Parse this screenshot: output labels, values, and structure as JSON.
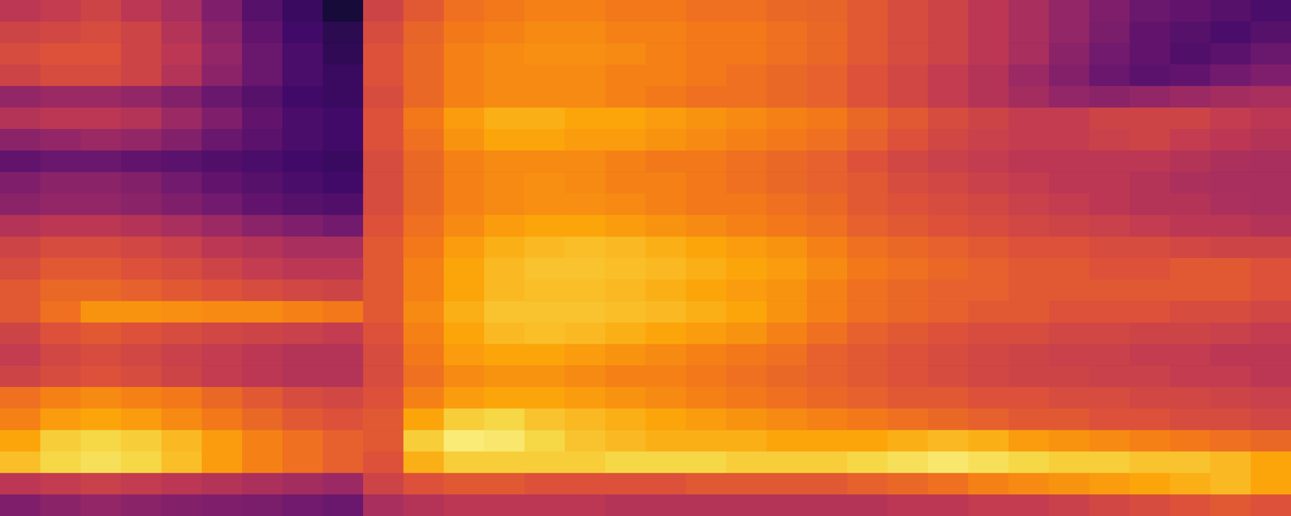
{
  "chart_data": {
    "type": "heatmap",
    "color": "inferno",
    "tick_labels": false,
    "zlim": [
      0,
      100
    ],
    "cells": [
      [
        50,
        52,
        55,
        50,
        45,
        35,
        25,
        18,
        10,
        55,
        62,
        68,
        70,
        72,
        72,
        70,
        70,
        68,
        68,
        66,
        65,
        62,
        58,
        55,
        50,
        45,
        40,
        35,
        30,
        28,
        25,
        22
      ],
      [
        55,
        56,
        58,
        55,
        48,
        38,
        28,
        20,
        15,
        58,
        65,
        70,
        72,
        74,
        74,
        72,
        72,
        70,
        70,
        68,
        66,
        62,
        58,
        55,
        50,
        45,
        40,
        34,
        28,
        25,
        22,
        25
      ],
      [
        58,
        60,
        60,
        55,
        50,
        40,
        30,
        22,
        16,
        60,
        66,
        72,
        74,
        75,
        75,
        74,
        72,
        70,
        70,
        68,
        66,
        62,
        58,
        55,
        50,
        45,
        38,
        32,
        28,
        24,
        26,
        30
      ],
      [
        55,
        58,
        58,
        55,
        48,
        38,
        30,
        22,
        18,
        60,
        66,
        72,
        74,
        74,
        74,
        72,
        72,
        70,
        68,
        66,
        64,
        60,
        56,
        52,
        48,
        42,
        36,
        30,
        26,
        28,
        32,
        35
      ],
      [
        40,
        42,
        42,
        40,
        36,
        30,
        25,
        20,
        18,
        58,
        66,
        72,
        74,
        74,
        74,
        72,
        70,
        68,
        68,
        66,
        64,
        60,
        56,
        52,
        48,
        44,
        40,
        38,
        40,
        42,
        44,
        45
      ],
      [
        48,
        50,
        50,
        48,
        42,
        35,
        28,
        22,
        20,
        60,
        70,
        78,
        82,
        82,
        80,
        80,
        78,
        76,
        74,
        72,
        70,
        66,
        62,
        58,
        55,
        52,
        52,
        55,
        55,
        55,
        52,
        50
      ],
      [
        38,
        40,
        42,
        40,
        36,
        30,
        26,
        22,
        20,
        60,
        68,
        76,
        80,
        80,
        78,
        78,
        76,
        74,
        72,
        70,
        68,
        64,
        60,
        56,
        54,
        52,
        52,
        54,
        55,
        52,
        50,
        48
      ],
      [
        28,
        30,
        30,
        28,
        26,
        24,
        22,
        20,
        18,
        58,
        66,
        72,
        74,
        74,
        74,
        72,
        70,
        70,
        68,
        66,
        64,
        60,
        56,
        54,
        52,
        50,
        50,
        50,
        50,
        48,
        46,
        45
      ],
      [
        35,
        38,
        38,
        36,
        32,
        28,
        25,
        22,
        20,
        58,
        66,
        72,
        74,
        75,
        74,
        72,
        72,
        70,
        68,
        66,
        64,
        62,
        58,
        56,
        54,
        52,
        50,
        50,
        48,
        46,
        45,
        45
      ],
      [
        38,
        40,
        40,
        38,
        35,
        32,
        28,
        25,
        24,
        58,
        66,
        72,
        74,
        75,
        75,
        74,
        72,
        70,
        70,
        68,
        66,
        62,
        60,
        58,
        56,
        54,
        52,
        50,
        48,
        48,
        46,
        45
      ],
      [
        48,
        50,
        50,
        48,
        45,
        42,
        38,
        35,
        32,
        60,
        68,
        74,
        78,
        80,
        80,
        78,
        76,
        74,
        72,
        70,
        68,
        64,
        62,
        60,
        58,
        56,
        55,
        54,
        52,
        50,
        50,
        48
      ],
      [
        55,
        58,
        58,
        56,
        54,
        50,
        48,
        45,
        45,
        62,
        70,
        78,
        82,
        84,
        85,
        84,
        82,
        80,
        78,
        76,
        72,
        68,
        66,
        64,
        62,
        60,
        60,
        58,
        58,
        56,
        55,
        55
      ],
      [
        58,
        62,
        62,
        60,
        58,
        55,
        52,
        50,
        50,
        62,
        72,
        80,
        84,
        86,
        86,
        85,
        84,
        82,
        80,
        78,
        74,
        70,
        68,
        66,
        64,
        62,
        62,
        60,
        60,
        62,
        62,
        60
      ],
      [
        62,
        66,
        66,
        64,
        62,
        60,
        58,
        56,
        55,
        62,
        72,
        80,
        84,
        85,
        85,
        84,
        82,
        80,
        78,
        76,
        72,
        68,
        66,
        64,
        64,
        62,
        62,
        62,
        62,
        62,
        62,
        60
      ],
      [
        62,
        68,
        76,
        76,
        75,
        74,
        74,
        72,
        70,
        62,
        74,
        82,
        86,
        86,
        86,
        85,
        84,
        82,
        80,
        76,
        72,
        68,
        66,
        64,
        62,
        62,
        60,
        60,
        60,
        58,
        58,
        56
      ],
      [
        55,
        60,
        62,
        60,
        58,
        56,
        55,
        54,
        52,
        60,
        72,
        80,
        84,
        85,
        84,
        82,
        80,
        78,
        76,
        72,
        68,
        64,
        62,
        60,
        58,
        58,
        56,
        56,
        55,
        55,
        54,
        52
      ],
      [
        52,
        56,
        58,
        56,
        54,
        52,
        50,
        48,
        48,
        58,
        70,
        78,
        80,
        80,
        78,
        76,
        74,
        72,
        70,
        68,
        64,
        62,
        60,
        58,
        56,
        55,
        54,
        54,
        52,
        52,
        50,
        50
      ],
      [
        55,
        58,
        60,
        58,
        55,
        52,
        50,
        48,
        48,
        58,
        68,
        74,
        76,
        76,
        74,
        72,
        72,
        70,
        68,
        66,
        64,
        62,
        60,
        58,
        56,
        55,
        55,
        54,
        54,
        52,
        52,
        50
      ],
      [
        68,
        72,
        74,
        72,
        70,
        66,
        62,
        58,
        56,
        60,
        72,
        78,
        80,
        80,
        78,
        76,
        74,
        72,
        70,
        68,
        66,
        64,
        62,
        62,
        60,
        60,
        58,
        58,
        56,
        56,
        55,
        54
      ],
      [
        72,
        78,
        80,
        78,
        74,
        70,
        66,
        62,
        60,
        62,
        80,
        88,
        90,
        86,
        84,
        82,
        80,
        78,
        76,
        74,
        72,
        70,
        68,
        66,
        64,
        62,
        62,
        60,
        60,
        58,
        58,
        56
      ],
      [
        80,
        88,
        90,
        88,
        84,
        78,
        72,
        68,
        64,
        62,
        88,
        95,
        94,
        90,
        86,
        84,
        82,
        82,
        82,
        80,
        80,
        80,
        82,
        84,
        82,
        78,
        76,
        74,
        72,
        70,
        68,
        66
      ],
      [
        85,
        90,
        92,
        90,
        85,
        78,
        72,
        68,
        64,
        60,
        82,
        88,
        88,
        88,
        88,
        90,
        90,
        90,
        88,
        88,
        88,
        90,
        92,
        94,
        92,
        90,
        88,
        88,
        86,
        86,
        84,
        80
      ],
      [
        50,
        52,
        54,
        52,
        50,
        48,
        46,
        44,
        42,
        55,
        60,
        62,
        62,
        60,
        60,
        60,
        60,
        62,
        62,
        62,
        62,
        64,
        66,
        68,
        72,
        74,
        76,
        78,
        80,
        82,
        84,
        80
      ],
      [
        35,
        38,
        40,
        38,
        36,
        35,
        34,
        32,
        30,
        45,
        48,
        50,
        50,
        50,
        50,
        48,
        48,
        48,
        48,
        48,
        48,
        48,
        50,
        50,
        52,
        52,
        54,
        56,
        58,
        60,
        62,
        60
      ]
    ]
  }
}
